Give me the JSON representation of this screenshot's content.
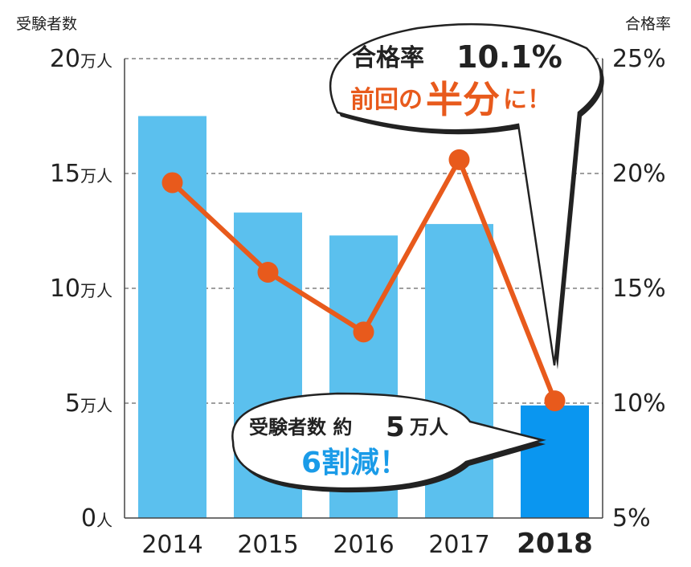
{
  "chart_data": {
    "type": "bar+line",
    "categories": [
      "2014",
      "2015",
      "2016",
      "2017",
      "2018"
    ],
    "highlight_category": "2018",
    "left_axis": {
      "title": "受験者数",
      "ylim": [
        0,
        20
      ],
      "ticks": [
        0,
        5,
        10,
        15,
        20
      ],
      "tick_labels": [
        "0",
        "5",
        "10",
        "15",
        "20"
      ],
      "unit_labels": [
        "人",
        "万人",
        "万人",
        "万人",
        "万人"
      ]
    },
    "right_axis": {
      "title": "合格率",
      "ylim": [
        5,
        25
      ],
      "ticks": [
        5,
        10,
        15,
        20,
        25
      ],
      "tick_labels": [
        "5%",
        "10%",
        "15%",
        "20%",
        "25%"
      ]
    },
    "series": [
      {
        "type": "bar",
        "axis": "left",
        "values": [
          17.5,
          13.3,
          12.3,
          12.8,
          4.9
        ]
      },
      {
        "type": "line",
        "axis": "right",
        "values": [
          19.6,
          15.7,
          13.1,
          20.6,
          10.1
        ]
      }
    ],
    "grid": "horizontal dashed",
    "annotations": [
      {
        "line1_a": "合格率",
        "line1_b": "10.1%",
        "line2_a": "前回の",
        "line2_b": "半分",
        "line2_c": "に！"
      },
      {
        "line1_a": "受験者数 約",
        "line1_b": "5",
        "line1_c": "万人",
        "line2": "6割減！"
      }
    ],
    "colors": {
      "bar": "#5bc0ee",
      "bar_highlight": "#0a96f0",
      "line": "#e85a1c",
      "callout_blue": "#1a9be8",
      "callout_orange": "#e85a1c"
    }
  }
}
